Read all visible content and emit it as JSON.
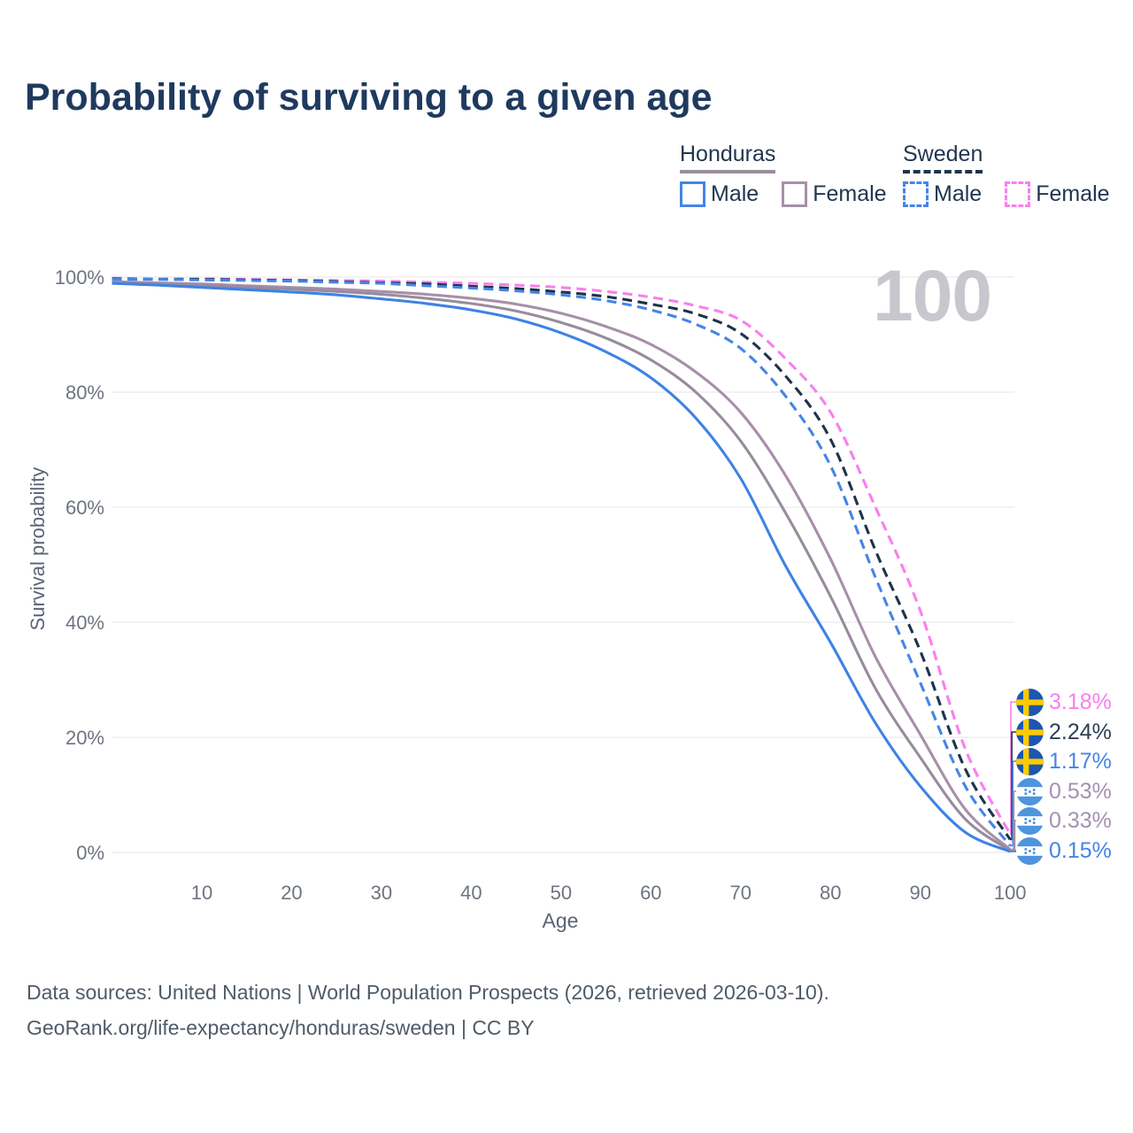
{
  "page": {
    "title": "Probability of surviving to a given age",
    "watermark_age": "100"
  },
  "legend": {
    "honduras": {
      "label": "Honduras",
      "male": "Male",
      "female": "Female",
      "underline_color": "#9b8e9b",
      "male_color": "#4485e8",
      "female_color": "#a78fa9",
      "line_style": "solid"
    },
    "sweden": {
      "label": "Sweden",
      "male": "Male",
      "female": "Female",
      "underline_color": "#1f3349",
      "male_color": "#4485e8",
      "female_color": "#f97fee",
      "line_style": "dashed"
    }
  },
  "axes": {
    "y_title": "Survival probability",
    "x_title": "Age",
    "y_ticks": [
      {
        "label": "100%",
        "value": 100
      },
      {
        "label": "80%",
        "value": 80
      },
      {
        "label": "60%",
        "value": 60
      },
      {
        "label": "40%",
        "value": 40
      },
      {
        "label": "20%",
        "value": 20
      },
      {
        "label": "0%",
        "value": 0
      }
    ],
    "x_ticks": [
      {
        "label": "10",
        "value": 10
      },
      {
        "label": "20",
        "value": 20
      },
      {
        "label": "30",
        "value": 30
      },
      {
        "label": "40",
        "value": 40
      },
      {
        "label": "50",
        "value": 50
      },
      {
        "label": "60",
        "value": 60
      },
      {
        "label": "70",
        "value": 70
      },
      {
        "label": "80",
        "value": 80
      },
      {
        "label": "90",
        "value": 90
      },
      {
        "label": "100",
        "value": 100
      }
    ]
  },
  "chart_data": {
    "type": "line",
    "title": "Probability of surviving to a given age",
    "xlabel": "Age",
    "ylabel": "Survival probability (%)",
    "xlim": [
      0,
      100
    ],
    "ylim": [
      0,
      100
    ],
    "grid": "horizontal",
    "legend_position": "top-right",
    "ages": [
      0,
      5,
      10,
      15,
      20,
      25,
      30,
      35,
      40,
      45,
      50,
      55,
      60,
      65,
      70,
      75,
      80,
      85,
      90,
      95,
      100
    ],
    "series": [
      {
        "key": "sweden-female",
        "name": "Sweden Female",
        "country": "Sweden",
        "sex": "Female",
        "color": "#f97fee",
        "label_color": "#f97fee",
        "dashed": true,
        "flag": "sweden",
        "end_label": "3.18%",
        "values": [
          99.8,
          99.7,
          99.7,
          99.6,
          99.5,
          99.4,
          99.3,
          99.1,
          98.9,
          98.6,
          98.2,
          97.5,
          96.5,
          95.0,
          92.5,
          85.8,
          76.5,
          60.0,
          42.0,
          18.0,
          3.18
        ]
      },
      {
        "key": "sweden-total",
        "name": "Sweden (both sexes)",
        "country": "Sweden",
        "sex": "Both",
        "color": "#1e3349",
        "label_color": "#2e3f55",
        "dashed": true,
        "flag": "sweden",
        "end_label": "2.24%",
        "values": [
          99.7,
          99.6,
          99.6,
          99.5,
          99.4,
          99.2,
          99.0,
          98.8,
          98.4,
          98.0,
          97.4,
          96.6,
          95.3,
          93.6,
          90.2,
          82.8,
          71.8,
          52.5,
          35.0,
          14.5,
          2.24
        ]
      },
      {
        "key": "sweden-male",
        "name": "Sweden Male",
        "country": "Sweden",
        "sex": "Male",
        "color": "#4485e8",
        "label_color": "#4485e8",
        "dashed": true,
        "flag": "sweden",
        "end_label": "1.17%",
        "values": [
          99.6,
          99.6,
          99.5,
          99.4,
          99.3,
          99.1,
          98.9,
          98.5,
          98.1,
          97.6,
          96.9,
          95.9,
          94.3,
          91.8,
          87.6,
          79.3,
          67.2,
          47.8,
          29.5,
          11.5,
          1.17
        ]
      },
      {
        "key": "honduras-female",
        "name": "Honduras Female",
        "country": "Honduras",
        "sex": "Female",
        "color": "#a78fa9",
        "label_color": "#a591b3",
        "dashed": false,
        "flag": "honduras",
        "end_label": "0.53%",
        "values": [
          99.2,
          99.0,
          98.8,
          98.5,
          98.2,
          97.9,
          97.5,
          97.0,
          96.3,
          95.3,
          93.7,
          91.4,
          88.3,
          83.5,
          76.5,
          65.5,
          51.0,
          34.0,
          20.5,
          7.5,
          0.53
        ]
      },
      {
        "key": "honduras-total",
        "name": "Honduras (both sexes)",
        "country": "Honduras",
        "sex": "Both",
        "color": "#978c9c",
        "label_color": "#a591b3",
        "dashed": false,
        "flag": "honduras",
        "end_label": "0.33%",
        "values": [
          99.1,
          98.8,
          98.5,
          98.2,
          97.9,
          97.5,
          97.0,
          96.3,
          95.4,
          94.1,
          92.1,
          89.4,
          85.6,
          80.0,
          71.5,
          59.0,
          44.5,
          28.5,
          16.5,
          5.8,
          0.33
        ]
      },
      {
        "key": "honduras-male",
        "name": "Honduras Male",
        "country": "Honduras",
        "sex": "Male",
        "color": "#3e82e6",
        "label_color": "#4485e8",
        "dashed": false,
        "flag": "honduras",
        "end_label": "0.15%",
        "values": [
          98.9,
          98.6,
          98.2,
          97.8,
          97.4,
          96.9,
          96.2,
          95.4,
          94.3,
          92.7,
          90.3,
          87.0,
          82.5,
          75.5,
          65.0,
          49.8,
          36.5,
          22.5,
          11.5,
          3.5,
          0.15
        ]
      }
    ]
  },
  "footer": {
    "line1": "Data sources: United Nations | World Population Prospects (2026, retrieved 2026-03-10).",
    "line2": "GeoRank.org/life-expectancy/honduras/sweden | CC BY"
  },
  "colors": {
    "title": "#1f3a5f",
    "tick": "#6d7480",
    "axis_title": "#5a6474",
    "gridline": "#ebebee",
    "watermark": "#c8c7ce",
    "footer": "#4f5b68",
    "sweden_flag_blue": "#1c56ad",
    "sweden_flag_yellow": "#fecb00",
    "honduras_flag_blue": "#4e95de"
  }
}
